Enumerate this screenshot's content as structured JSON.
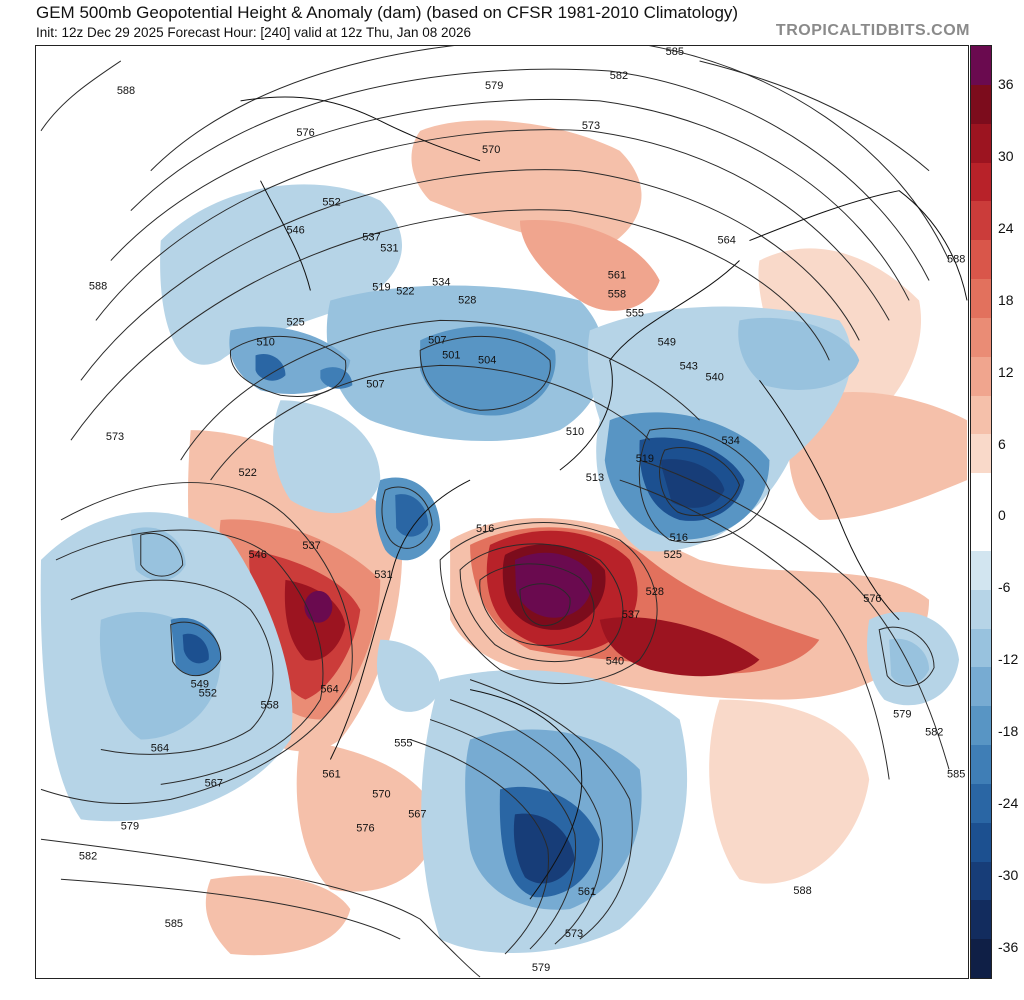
{
  "header": {
    "title": "GEM 500mb Geopotential Height & Anomaly (dam) (based on CFSR 1981-2010 Climatology)",
    "subtitle": "Init: 12z Dec 29 2025   Forecast Hour: [240]   valid at 12z Thu, Jan 08 2026",
    "brand": "TROPICALTIDBITS.COM"
  },
  "colorbar": {
    "labels": [
      "36",
      "30",
      "24",
      "18",
      "12",
      "6",
      "0",
      "-6",
      "-12",
      "-18",
      "-24",
      "-30",
      "-36"
    ],
    "colors": [
      "#6a0a4f",
      "#7c0c1c",
      "#9c1420",
      "#b82229",
      "#cb3c3a",
      "#d9564a",
      "#e2715d",
      "#ea8c75",
      "#f0a58e",
      "#f5c0aa",
      "#f9d9c9",
      "#ffffff",
      "#ffffff",
      "#d2e5f0",
      "#b6d4e7",
      "#98c2de",
      "#77abd2",
      "#5895c4",
      "#3f7eb6",
      "#2a66a4",
      "#1c5090",
      "#173d78",
      "#122c5e",
      "#0f1f46"
    ]
  },
  "map": {
    "height_contour_labels": [
      "588",
      "585",
      "582",
      "579",
      "576",
      "573",
      "570",
      "567",
      "564",
      "561",
      "558",
      "555",
      "552",
      "549",
      "546",
      "543",
      "540",
      "537",
      "534",
      "531",
      "528",
      "525",
      "522",
      "519",
      "516",
      "513",
      "510",
      "507",
      "504",
      "501"
    ],
    "land_color": "#ffffff",
    "contour_color": "#2a2a2a"
  }
}
